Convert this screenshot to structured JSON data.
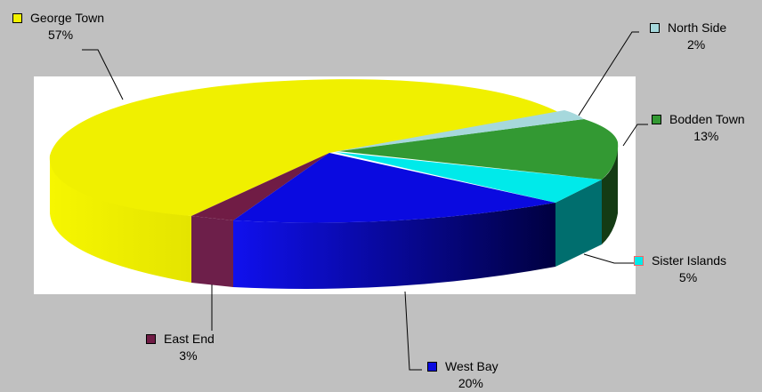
{
  "chart_data": {
    "type": "pie",
    "style": "3d-exploded-perspective",
    "legend_placement": "callouts",
    "slices": [
      {
        "name": "George Town",
        "value": 57,
        "label": "57%",
        "color": "#f2f200"
      },
      {
        "name": "North Side",
        "value": 2,
        "label": "2%",
        "color": "#a6d8dc"
      },
      {
        "name": "Bodden Town",
        "value": 13,
        "label": "13%",
        "color": "#339933"
      },
      {
        "name": "Sister Islands",
        "value": 5,
        "label": "5%",
        "color": "#00eaea"
      },
      {
        "name": "West Bay",
        "value": 20,
        "label": "20%",
        "color": "#0a0ae0"
      },
      {
        "name": "East End",
        "value": 3,
        "label": "3%",
        "color": "#701c45"
      }
    ]
  }
}
